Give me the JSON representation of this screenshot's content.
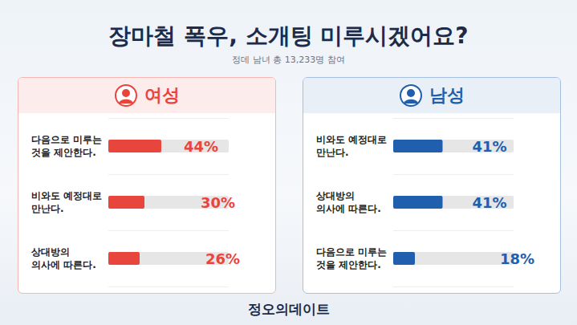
{
  "title": "장마철 폭우, 소개팅 미루시겠어요?",
  "subtitle": "정데 남녀 총 13,233명 참여",
  "footer": "정오의데이트",
  "chart_data": [
    {
      "type": "bar",
      "title": "여성",
      "orientation": "horizontal",
      "categories": [
        "다음으로 미루는 것을 제안한다.",
        "비와도 예정대로 만난다.",
        "상대방의 의사에 따른다."
      ],
      "values": [
        44,
        30,
        26
      ],
      "value_labels": [
        "44%",
        "30%",
        "26%"
      ],
      "color": "#e8453c",
      "xlim": [
        0,
        100
      ],
      "xticks": [
        0,
        100
      ],
      "grid": false,
      "data_labels": true,
      "tick_labels": false
    },
    {
      "type": "bar",
      "title": "남성",
      "orientation": "horizontal",
      "categories": [
        "비와도 예정대로 만난다.",
        "상대방의 의사에 따른다.",
        "다음으로 미루는 것을 제안한다."
      ],
      "values": [
        41,
        41,
        18
      ],
      "value_labels": [
        "41%",
        "41%",
        "18%"
      ],
      "color": "#1f5fae",
      "xlim": [
        0,
        100
      ],
      "xticks": [
        0,
        100
      ],
      "grid": false,
      "data_labels": true,
      "tick_labels": false
    }
  ]
}
